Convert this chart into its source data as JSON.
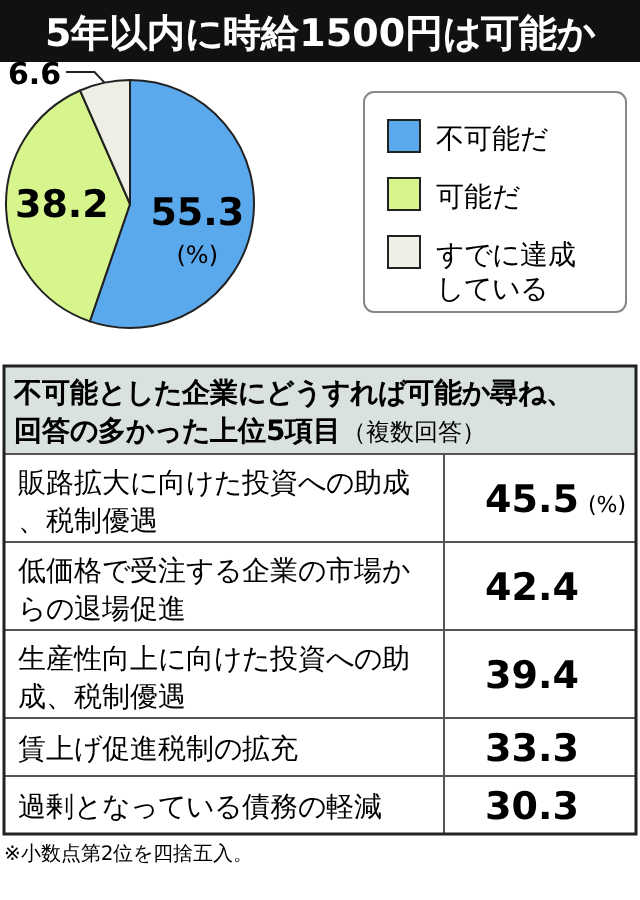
{
  "chart_data": [
    {
      "type": "pie",
      "title": "5年以内に時給1500円は可能か",
      "categories": [
        "不可能だ",
        "可能だ",
        "すでに達成している"
      ],
      "values": [
        55.3,
        38.2,
        6.6
      ],
      "colors": [
        "#5aa9ec",
        "#d6f58c",
        "#eeeee4"
      ],
      "data_labels": true,
      "legend": "right",
      "annotations": [
        "(%)"
      ]
    },
    {
      "type": "other",
      "title": "不可能とした企業にどうすれば可能か尋ね、回答の多かった上位5項目",
      "subtitle": "（複数回答）",
      "categories": [
        "販路拡大に向けた投資への助成、税制優遇",
        "低価格で受注する企業の市場からの退場促進",
        "生産性向上に向けた投資への助成、税制優遇",
        "賃上げ促進税制の拡充",
        "過剰となっている債務の軽減"
      ],
      "values": [
        45.5,
        42.4,
        39.4,
        33.3,
        30.3
      ],
      "data_labels": true,
      "annotations": [
        "(%)",
        "※小数点第2位を四捨五入。"
      ]
    }
  ]
}
